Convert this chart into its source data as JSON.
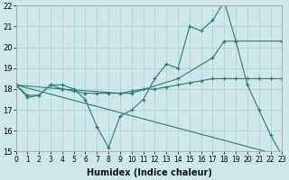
{
  "xlabel": "Humidex (Indice chaleur)",
  "bg_color": "#cce8e8",
  "grid_color": "#aad0cc",
  "line_color": "#2d7a7a",
  "xlim": [
    0,
    23
  ],
  "ylim": [
    15,
    22
  ],
  "yticks": [
    15,
    16,
    17,
    18,
    19,
    20,
    21,
    22
  ],
  "xticks": [
    0,
    1,
    2,
    3,
    4,
    5,
    6,
    7,
    8,
    9,
    10,
    11,
    12,
    13,
    14,
    15,
    16,
    17,
    18,
    19,
    20,
    21,
    22,
    23
  ],
  "series": [
    {
      "x": [
        0,
        1,
        2,
        3,
        4,
        5,
        6,
        7,
        8,
        9,
        10,
        11,
        12,
        13,
        14,
        15,
        16,
        17,
        18,
        19,
        20,
        21,
        22,
        23
      ],
      "y": [
        18.2,
        17.6,
        17.7,
        18.2,
        18.2,
        18.0,
        17.5,
        16.2,
        15.2,
        16.7,
        17.0,
        17.5,
        18.5,
        19.2,
        19.0,
        21.0,
        20.8,
        21.3,
        22.2,
        20.3,
        18.2,
        17.0,
        15.8,
        14.8
      ]
    },
    {
      "x": [
        0,
        1,
        2,
        3,
        4,
        5,
        6,
        7,
        8,
        9,
        10,
        11,
        12,
        13,
        14,
        15,
        16,
        17,
        18,
        19,
        20,
        21,
        22,
        23
      ],
      "y": [
        18.2,
        17.7,
        17.7,
        18.2,
        18.0,
        17.9,
        17.8,
        17.8,
        17.8,
        17.8,
        17.9,
        18.0,
        18.0,
        18.1,
        18.2,
        18.3,
        18.4,
        18.5,
        18.5,
        18.5,
        18.5,
        18.5,
        18.5,
        18.5
      ]
    },
    {
      "x": [
        0,
        23
      ],
      "y": [
        18.2,
        14.8
      ]
    },
    {
      "x": [
        0,
        4,
        9,
        10,
        14,
        17,
        18,
        19,
        23
      ],
      "y": [
        18.2,
        18.0,
        17.8,
        17.8,
        18.5,
        19.5,
        20.3,
        20.3,
        20.3
      ]
    }
  ]
}
